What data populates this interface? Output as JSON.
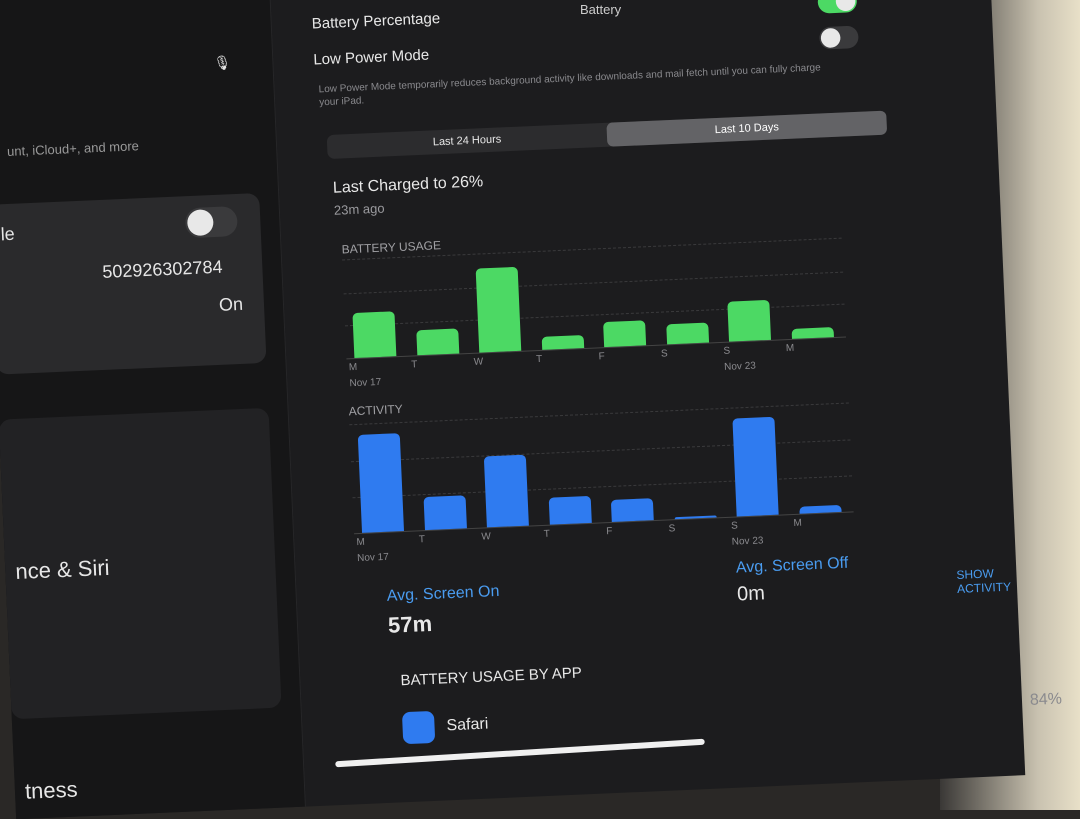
{
  "header": {
    "title": "Battery"
  },
  "sidebar": {
    "mic_icon": "microphone-icon",
    "account_subtitle": "unt, iCloud+, and more",
    "toggle_row_label": "le",
    "toggle_on": false,
    "serial": "502926302784",
    "status_value": "On",
    "siri_label": "nce & Siri",
    "fitness_label": "tness"
  },
  "settings": {
    "battery_percentage": {
      "label": "Battery Percentage",
      "on": true
    },
    "low_power": {
      "label": "Low Power Mode",
      "on": false
    },
    "footnote": "Low Power Mode temporarily reduces background activity like downloads and mail fetch until you can fully charge your iPad."
  },
  "tabs": [
    {
      "label": "Last 24 Hours"
    },
    {
      "label": "Last 10 Days",
      "active": true
    }
  ],
  "last_charged": {
    "title": "Last Charged to 26%",
    "subtitle": "23m ago"
  },
  "chart_data": [
    {
      "type": "bar",
      "title": "BATTERY USAGE",
      "categories": [
        "M",
        "T",
        "W",
        "T",
        "F",
        "S",
        "S",
        "M"
      ],
      "date_labels": [
        "Nov 17",
        "Nov 23"
      ],
      "values": [
        45,
        25,
        85,
        13,
        25,
        20,
        40,
        10
      ],
      "color": "#4cd964"
    },
    {
      "type": "bar",
      "title": "ACTIVITY",
      "categories": [
        "M",
        "T",
        "W",
        "T",
        "F",
        "S",
        "S",
        "M"
      ],
      "date_labels": [
        "Nov 17",
        "Nov 23"
      ],
      "values": [
        90,
        30,
        65,
        25,
        20,
        2,
        90,
        6
      ],
      "color": "#2f7bf0"
    }
  ],
  "averages": {
    "on_label": "Avg. Screen On",
    "on_value": "57m",
    "off_label": "Avg. Screen Off",
    "off_value": "0m"
  },
  "show_activity": "SHOW ACTIVITY",
  "by_app": {
    "header": "BATTERY USAGE BY APP",
    "apps": [
      {
        "name": "Safari",
        "percent": "84%"
      }
    ]
  }
}
